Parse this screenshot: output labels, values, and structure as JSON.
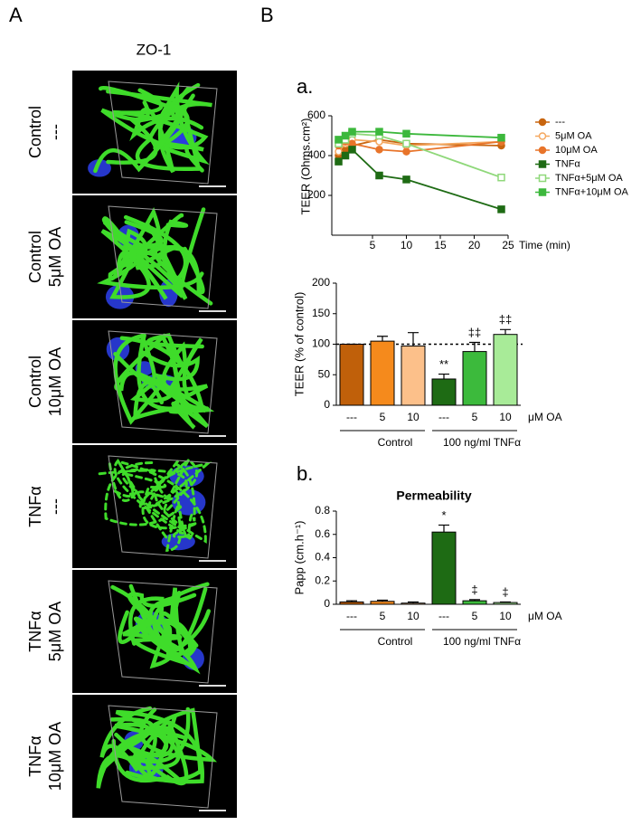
{
  "panel_a": {
    "label": "A",
    "title": "ZO-1",
    "images": [
      {
        "line1": "Control",
        "line2": "---"
      },
      {
        "line1": "Control",
        "line2": "5μM OA"
      },
      {
        "line1": "Control",
        "line2": "10μM OA"
      },
      {
        "line1": "TNFα",
        "line2": "---"
      },
      {
        "line1": "TNFα",
        "line2": "5μM OA"
      },
      {
        "line1": "TNFα",
        "line2": "10μM OA"
      }
    ]
  },
  "panel_b": {
    "label": "B",
    "sub_a": "a.",
    "sub_b": "b."
  },
  "chart_data": [
    {
      "type": "line",
      "y_label": "TEER (Ohms.cm²)",
      "x_label": "Time (min)",
      "x": [
        0,
        1,
        2,
        6,
        10,
        24
      ],
      "xlim": [
        -1,
        25
      ],
      "xticks": [
        5,
        10,
        15,
        20,
        25
      ],
      "ylim": [
        0,
        600
      ],
      "yticks": [
        200,
        400,
        600
      ],
      "series": [
        {
          "name": "---",
          "color": "#c8650f",
          "marker": "circle",
          "filled": true,
          "values": [
            400,
            430,
            450,
            480,
            460,
            450
          ]
        },
        {
          "name": "5μM OA",
          "color": "#f5a860",
          "marker": "circle",
          "filled": false,
          "values": [
            420,
            460,
            480,
            470,
            450,
            470
          ]
        },
        {
          "name": "10μM OA",
          "color": "#e8742a",
          "marker": "circle",
          "filled": true,
          "values": [
            450,
            470,
            460,
            430,
            420,
            470
          ]
        },
        {
          "name": "TNFα",
          "color": "#1e6b14",
          "marker": "square",
          "filled": true,
          "values": [
            370,
            400,
            430,
            300,
            280,
            130
          ]
        },
        {
          "name": "TNFα+5μM OA",
          "color": "#8fd87a",
          "marker": "square",
          "filled": false,
          "values": [
            460,
            480,
            510,
            500,
            460,
            290
          ]
        },
        {
          "name": "TNFα+10μM OA",
          "color": "#3cb83c",
          "marker": "square",
          "filled": true,
          "values": [
            480,
            500,
            520,
            520,
            510,
            490
          ]
        }
      ]
    },
    {
      "type": "bar",
      "y_label": "TEER (% of control)",
      "categories": [
        "---",
        "5",
        "10",
        "---",
        "5",
        "10"
      ],
      "x_unit": "μM OA",
      "x_groups": [
        "Control",
        "100 ng/ml TNFα"
      ],
      "values": [
        100,
        105,
        97,
        43,
        88,
        116
      ],
      "errors": [
        0,
        8,
        22,
        8,
        15,
        8
      ],
      "annotations": [
        null,
        null,
        null,
        "**",
        "‡‡",
        "‡‡"
      ],
      "colors": [
        "#c0600a",
        "#f58a1c",
        "#fcc08a",
        "#1e6b14",
        "#3cba3c",
        "#a8eb98"
      ],
      "reference_line": 100,
      "ylim": [
        0,
        200
      ],
      "yticks": [
        0,
        50,
        100,
        150,
        200
      ]
    },
    {
      "type": "bar",
      "title": "Permeability",
      "y_label": "Papp (cm.h⁻¹)",
      "categories": [
        "---",
        "5",
        "10",
        "---",
        "5",
        "10"
      ],
      "x_unit": "μM OA",
      "x_groups": [
        "Control",
        "100 ng/ml TNFα"
      ],
      "values": [
        0.02,
        0.025,
        0.01,
        0.62,
        0.03,
        0.015
      ],
      "errors": [
        0.01,
        0.01,
        0.01,
        0.06,
        0.01,
        0.005
      ],
      "annotations": [
        null,
        null,
        null,
        "*",
        "‡",
        "‡"
      ],
      "colors": [
        "#c0600a",
        "#f58a1c",
        "#fcc08a",
        "#1e6b14",
        "#3cba3c",
        "#a8eb98"
      ],
      "ylim": [
        0,
        0.8
      ],
      "yticks": [
        0,
        0.2,
        0.4,
        0.6,
        0.8
      ]
    }
  ]
}
